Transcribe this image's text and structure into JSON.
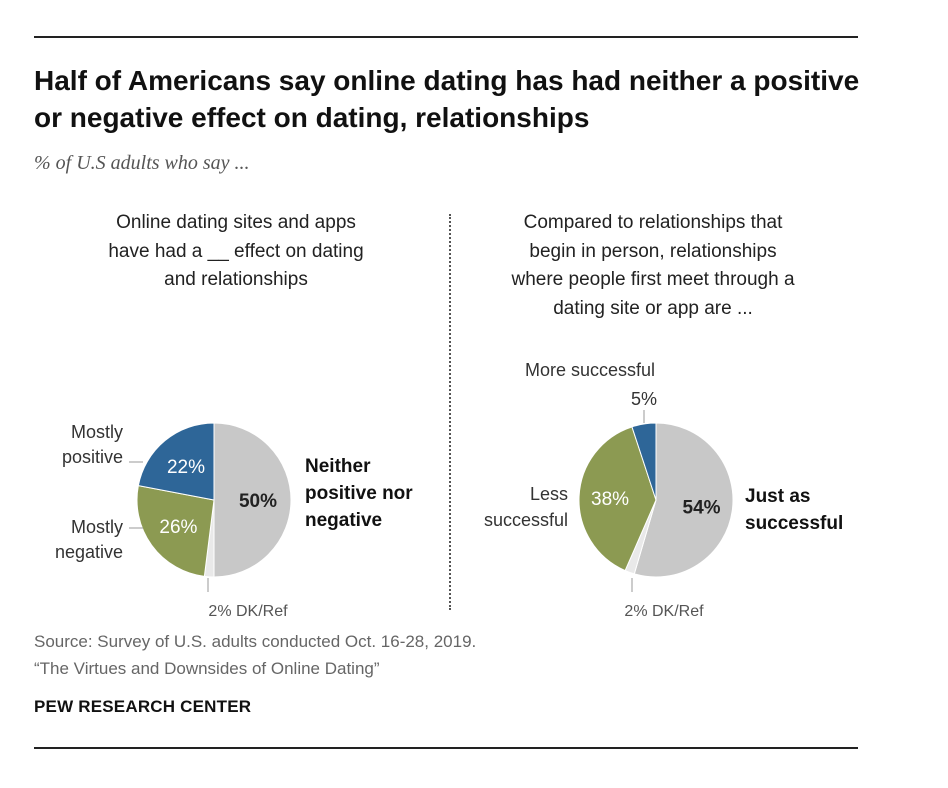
{
  "header": {
    "title": "Half of Americans say online dating has had neither a positive or negative effect on dating, relationships",
    "subtitle": "% of U.S adults who say ..."
  },
  "footer": {
    "source": "Source: Survey of U.S. adults conducted Oct. 16-28, 2019.",
    "report": "“The Virtues and Downsides of Online Dating”",
    "brand": "PEW RESEARCH CENTER"
  },
  "colors": {
    "blue": "#2e6698",
    "olive": "#8c9a52",
    "gray": "#c8c8c8",
    "dk_ref": "#e9e9e9"
  },
  "chart_data": [
    {
      "type": "pie",
      "title": "Online dating sites and apps\nhave had a __ effect on dating\nand relationships",
      "slices": [
        {
          "label": "Neither positive nor negative",
          "value": 50,
          "value_label": "50%",
          "color": "#c8c8c8"
        },
        {
          "label": "2% DK/Ref",
          "value": 2,
          "value_label": "",
          "color": "#e9e9e9"
        },
        {
          "label": "Mostly negative",
          "value": 26,
          "value_label": "26%",
          "color": "#8c9a52"
        },
        {
          "label": "Mostly positive",
          "value": 22,
          "value_label": "22%",
          "color": "#2e6698"
        }
      ]
    },
    {
      "type": "pie",
      "title": "Compared to relationships that\nbegin in person, relationships\nwhere people first meet through a\ndating site or app are ...",
      "slices": [
        {
          "label": "Just as successful",
          "value": 54,
          "value_label": "54%",
          "color": "#c8c8c8"
        },
        {
          "label": "2% DK/Ref",
          "value": 2,
          "value_label": "",
          "color": "#e9e9e9"
        },
        {
          "label": "Less successful",
          "value": 38,
          "value_label": "38%",
          "color": "#8c9a52"
        },
        {
          "label": "More successful",
          "value": 5,
          "value_label": "5%",
          "color": "#2e6698"
        }
      ]
    }
  ]
}
